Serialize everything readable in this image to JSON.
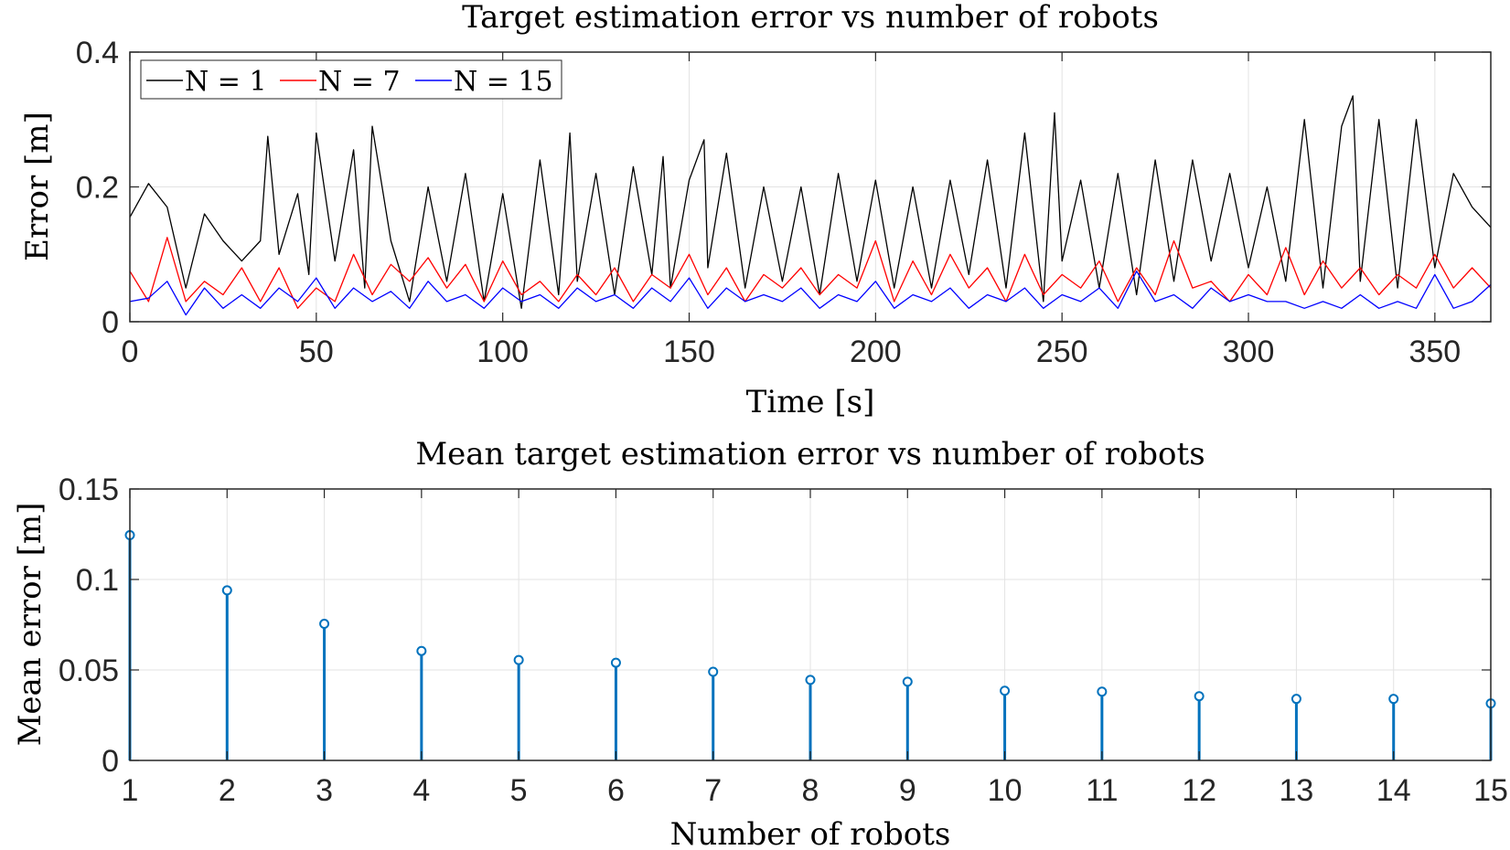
{
  "chart_data": [
    {
      "type": "line",
      "title": "Target estimation error vs number of robots",
      "xlabel": "Time [s]",
      "ylabel": "Error [m]",
      "xlim": [
        0,
        365
      ],
      "ylim": [
        0,
        0.4
      ],
      "xticks": [
        0,
        50,
        100,
        150,
        200,
        250,
        300,
        350
      ],
      "yticks": [
        0,
        0.2,
        0.4
      ],
      "xtick_labels": [
        "0",
        "50",
        "100",
        "150",
        "200",
        "250",
        "300",
        "350"
      ],
      "ytick_labels": [
        "0",
        "0.2",
        "0.4"
      ],
      "grid": true,
      "legend_position": "top-left",
      "series": [
        {
          "name": "N = 1",
          "color": "#000000",
          "x": [
            0,
            5,
            10,
            15,
            20,
            25,
            30,
            35,
            37,
            40,
            45,
            48,
            50,
            55,
            60,
            63,
            65,
            70,
            75,
            80,
            85,
            90,
            95,
            100,
            105,
            110,
            115,
            118,
            120,
            125,
            130,
            135,
            140,
            143,
            145,
            150,
            154,
            155,
            160,
            165,
            170,
            175,
            180,
            185,
            190,
            195,
            200,
            205,
            210,
            215,
            220,
            225,
            230,
            235,
            240,
            245,
            248,
            250,
            255,
            260,
            265,
            270,
            275,
            280,
            285,
            290,
            295,
            300,
            305,
            310,
            315,
            320,
            325,
            328,
            330,
            335,
            340,
            345,
            350,
            355,
            360,
            365
          ],
          "values": [
            0.155,
            0.205,
            0.17,
            0.05,
            0.16,
            0.12,
            0.09,
            0.12,
            0.275,
            0.1,
            0.19,
            0.07,
            0.28,
            0.09,
            0.255,
            0.05,
            0.29,
            0.12,
            0.03,
            0.2,
            0.06,
            0.22,
            0.03,
            0.19,
            0.02,
            0.24,
            0.04,
            0.28,
            0.06,
            0.22,
            0.04,
            0.23,
            0.07,
            0.245,
            0.05,
            0.21,
            0.27,
            0.08,
            0.25,
            0.05,
            0.2,
            0.06,
            0.2,
            0.04,
            0.22,
            0.06,
            0.21,
            0.05,
            0.2,
            0.05,
            0.21,
            0.07,
            0.24,
            0.05,
            0.28,
            0.03,
            0.31,
            0.09,
            0.21,
            0.05,
            0.22,
            0.04,
            0.24,
            0.06,
            0.24,
            0.09,
            0.22,
            0.08,
            0.2,
            0.06,
            0.3,
            0.05,
            0.29,
            0.335,
            0.06,
            0.3,
            0.05,
            0.3,
            0.08,
            0.22,
            0.17,
            0.14
          ]
        },
        {
          "name": "N = 7",
          "color": "#ff0000",
          "x": [
            0,
            5,
            10,
            15,
            20,
            25,
            30,
            35,
            40,
            45,
            50,
            55,
            60,
            65,
            70,
            75,
            80,
            85,
            90,
            95,
            100,
            105,
            110,
            115,
            120,
            125,
            130,
            135,
            140,
            145,
            150,
            155,
            160,
            165,
            170,
            175,
            180,
            185,
            190,
            195,
            200,
            205,
            210,
            215,
            220,
            225,
            230,
            235,
            240,
            245,
            250,
            255,
            260,
            265,
            270,
            275,
            280,
            285,
            290,
            295,
            300,
            305,
            310,
            315,
            320,
            325,
            330,
            335,
            340,
            345,
            350,
            355,
            360,
            365
          ],
          "values": [
            0.075,
            0.03,
            0.125,
            0.03,
            0.06,
            0.04,
            0.08,
            0.03,
            0.08,
            0.02,
            0.05,
            0.03,
            0.1,
            0.04,
            0.085,
            0.06,
            0.095,
            0.05,
            0.085,
            0.03,
            0.09,
            0.04,
            0.06,
            0.03,
            0.07,
            0.04,
            0.08,
            0.03,
            0.07,
            0.05,
            0.1,
            0.04,
            0.08,
            0.03,
            0.07,
            0.05,
            0.08,
            0.04,
            0.07,
            0.05,
            0.12,
            0.03,
            0.09,
            0.04,
            0.1,
            0.05,
            0.08,
            0.03,
            0.1,
            0.04,
            0.07,
            0.05,
            0.09,
            0.03,
            0.08,
            0.04,
            0.12,
            0.05,
            0.06,
            0.03,
            0.07,
            0.04,
            0.11,
            0.04,
            0.09,
            0.05,
            0.08,
            0.04,
            0.07,
            0.05,
            0.1,
            0.05,
            0.08,
            0.05
          ]
        },
        {
          "name": "N = 15",
          "color": "#0000ff",
          "x": [
            0,
            5,
            10,
            15,
            20,
            25,
            30,
            35,
            40,
            45,
            50,
            55,
            60,
            65,
            70,
            75,
            80,
            85,
            90,
            95,
            100,
            105,
            110,
            115,
            120,
            125,
            130,
            135,
            140,
            145,
            150,
            155,
            160,
            165,
            170,
            175,
            180,
            185,
            190,
            195,
            200,
            205,
            210,
            215,
            220,
            225,
            230,
            235,
            240,
            245,
            250,
            255,
            260,
            265,
            270,
            275,
            280,
            285,
            290,
            295,
            300,
            305,
            310,
            315,
            320,
            325,
            330,
            335,
            340,
            345,
            350,
            355,
            360,
            365
          ],
          "values": [
            0.03,
            0.035,
            0.06,
            0.01,
            0.05,
            0.02,
            0.04,
            0.02,
            0.05,
            0.03,
            0.065,
            0.02,
            0.05,
            0.03,
            0.045,
            0.02,
            0.06,
            0.03,
            0.04,
            0.02,
            0.05,
            0.03,
            0.04,
            0.02,
            0.05,
            0.03,
            0.04,
            0.02,
            0.05,
            0.03,
            0.065,
            0.02,
            0.05,
            0.03,
            0.04,
            0.03,
            0.05,
            0.02,
            0.04,
            0.03,
            0.06,
            0.02,
            0.04,
            0.03,
            0.05,
            0.02,
            0.04,
            0.03,
            0.05,
            0.02,
            0.04,
            0.03,
            0.05,
            0.02,
            0.075,
            0.03,
            0.04,
            0.02,
            0.05,
            0.03,
            0.04,
            0.03,
            0.03,
            0.02,
            0.03,
            0.02,
            0.04,
            0.02,
            0.03,
            0.02,
            0.07,
            0.02,
            0.03,
            0.055
          ]
        }
      ]
    },
    {
      "type": "stem",
      "title": "Mean target estimation error vs number of robots",
      "xlabel": "Number of robots",
      "ylabel": "Mean error [m]",
      "xlim": [
        1,
        15
      ],
      "ylim": [
        0,
        0.15
      ],
      "xticks": [
        1,
        2,
        3,
        4,
        5,
        6,
        7,
        8,
        9,
        10,
        11,
        12,
        13,
        14,
        15
      ],
      "yticks": [
        0,
        0.05,
        0.1,
        0.15
      ],
      "xtick_labels": [
        "1",
        "2",
        "3",
        "4",
        "5",
        "6",
        "7",
        "8",
        "9",
        "10",
        "11",
        "12",
        "13",
        "14",
        "15"
      ],
      "ytick_labels": [
        "0",
        "0.05",
        "0.1",
        "0.15"
      ],
      "grid": true,
      "color": "#0072bd",
      "categories": [
        1,
        2,
        3,
        4,
        5,
        6,
        7,
        8,
        9,
        10,
        11,
        12,
        13,
        14,
        15
      ],
      "values": [
        0.1245,
        0.094,
        0.0755,
        0.0605,
        0.0555,
        0.054,
        0.049,
        0.0445,
        0.0435,
        0.0385,
        0.038,
        0.0355,
        0.034,
        0.034,
        0.0315
      ]
    }
  ]
}
